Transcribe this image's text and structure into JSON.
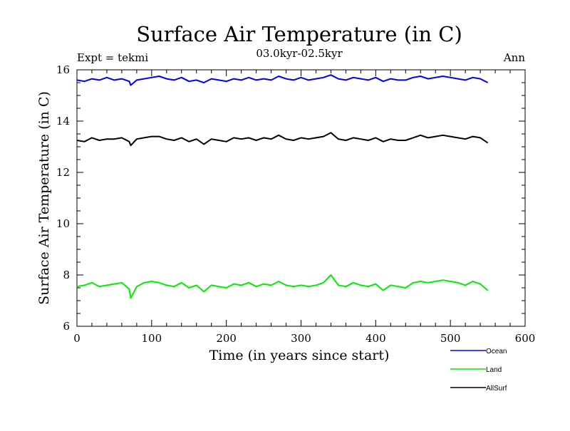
{
  "chart_data": {
    "type": "line",
    "title": "Surface Air Temperature (in C)",
    "subtitle": "03.0kyr-02.5kyr",
    "left_label": "Expt = tekmi",
    "right_label": "Ann",
    "xlabel": "Time (in years since start)",
    "ylabel": "Surface Air Temperature (in C)",
    "xlim": [
      0,
      600
    ],
    "ylim": [
      6,
      16
    ],
    "xticks": [
      0,
      100,
      200,
      300,
      400,
      500,
      600
    ],
    "xtick_labels": [
      "0",
      "100",
      "200",
      "300",
      "400",
      "500",
      "600"
    ],
    "yticks": [
      6,
      8,
      10,
      12,
      14,
      16
    ],
    "ytick_labels": [
      "6",
      "8",
      "10",
      "12",
      "14",
      "16"
    ],
    "legend_position": "bottom-right, below plot",
    "series": [
      {
        "name": "Ocean",
        "color": "#0000ee",
        "x": [
          0,
          10,
          20,
          30,
          40,
          50,
          60,
          70,
          72,
          80,
          90,
          100,
          110,
          120,
          130,
          140,
          150,
          160,
          170,
          180,
          190,
          200,
          210,
          220,
          230,
          240,
          250,
          260,
          270,
          280,
          290,
          300,
          310,
          320,
          330,
          340,
          350,
          360,
          370,
          380,
          390,
          400,
          410,
          420,
          430,
          440,
          450,
          460,
          470,
          480,
          490,
          500,
          510,
          520,
          530,
          540,
          550
        ],
        "values": [
          15.6,
          15.55,
          15.65,
          15.6,
          15.7,
          15.6,
          15.65,
          15.55,
          15.4,
          15.6,
          15.65,
          15.7,
          15.75,
          15.65,
          15.6,
          15.7,
          15.55,
          15.6,
          15.5,
          15.65,
          15.6,
          15.55,
          15.65,
          15.6,
          15.7,
          15.6,
          15.65,
          15.6,
          15.75,
          15.65,
          15.6,
          15.7,
          15.6,
          15.65,
          15.7,
          15.8,
          15.65,
          15.6,
          15.7,
          15.65,
          15.6,
          15.7,
          15.55,
          15.65,
          15.6,
          15.6,
          15.7,
          15.75,
          15.65,
          15.7,
          15.75,
          15.7,
          15.65,
          15.6,
          15.7,
          15.65,
          15.5
        ]
      },
      {
        "name": "Land",
        "color": "#00ee00",
        "x": [
          0,
          10,
          20,
          30,
          40,
          50,
          60,
          70,
          72,
          80,
          90,
          100,
          110,
          120,
          130,
          140,
          150,
          160,
          170,
          180,
          190,
          200,
          210,
          220,
          230,
          240,
          250,
          260,
          270,
          280,
          290,
          300,
          310,
          320,
          330,
          340,
          350,
          360,
          370,
          380,
          390,
          400,
          410,
          420,
          430,
          440,
          450,
          460,
          470,
          480,
          490,
          500,
          510,
          520,
          530,
          540,
          550
        ],
        "values": [
          7.55,
          7.6,
          7.7,
          7.55,
          7.6,
          7.65,
          7.7,
          7.45,
          7.1,
          7.55,
          7.7,
          7.75,
          7.7,
          7.6,
          7.55,
          7.7,
          7.5,
          7.6,
          7.35,
          7.6,
          7.55,
          7.5,
          7.65,
          7.6,
          7.7,
          7.55,
          7.65,
          7.6,
          7.75,
          7.6,
          7.55,
          7.6,
          7.55,
          7.6,
          7.7,
          8.0,
          7.6,
          7.55,
          7.7,
          7.6,
          7.55,
          7.65,
          7.4,
          7.6,
          7.55,
          7.5,
          7.7,
          7.75,
          7.7,
          7.75,
          7.8,
          7.75,
          7.7,
          7.6,
          7.75,
          7.65,
          7.4
        ]
      },
      {
        "name": "AllSurf",
        "color": "#000000",
        "x": [
          0,
          10,
          20,
          30,
          40,
          50,
          60,
          70,
          72,
          80,
          90,
          100,
          110,
          120,
          130,
          140,
          150,
          160,
          170,
          180,
          190,
          200,
          210,
          220,
          230,
          240,
          250,
          260,
          270,
          280,
          290,
          300,
          310,
          320,
          330,
          340,
          350,
          360,
          370,
          380,
          390,
          400,
          410,
          420,
          430,
          440,
          450,
          460,
          470,
          480,
          490,
          500,
          510,
          520,
          530,
          540,
          550
        ],
        "values": [
          13.25,
          13.2,
          13.35,
          13.25,
          13.3,
          13.3,
          13.35,
          13.2,
          13.05,
          13.3,
          13.35,
          13.4,
          13.4,
          13.3,
          13.25,
          13.35,
          13.2,
          13.3,
          13.1,
          13.3,
          13.25,
          13.2,
          13.35,
          13.3,
          13.35,
          13.25,
          13.35,
          13.3,
          13.45,
          13.3,
          13.25,
          13.35,
          13.3,
          13.35,
          13.4,
          13.55,
          13.3,
          13.25,
          13.35,
          13.3,
          13.25,
          13.35,
          13.2,
          13.3,
          13.25,
          13.25,
          13.35,
          13.45,
          13.35,
          13.4,
          13.45,
          13.4,
          13.35,
          13.3,
          13.4,
          13.35,
          13.15
        ]
      }
    ]
  }
}
